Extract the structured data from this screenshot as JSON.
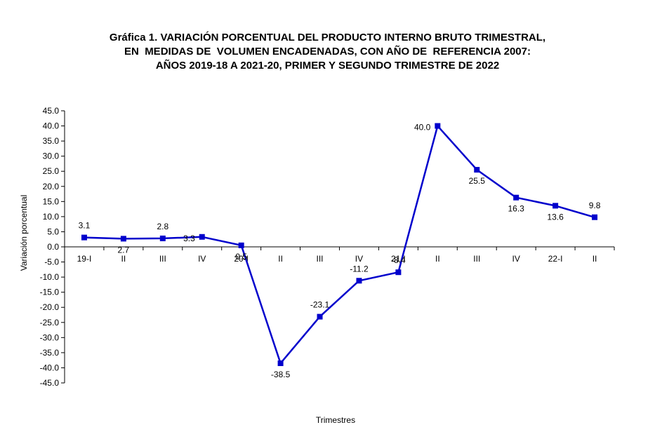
{
  "chart_data": {
    "type": "line",
    "title_lines": [
      "Gráfica 1. VARIACIÓN PORCENTUAL DEL PRODUCTO INTERNO BRUTO TRIMESTRAL,",
      "EN  MEDIDAS DE  VOLUMEN ENCADENADAS, CON AÑO DE  REFERENCIA 2007:",
      "AÑOS 2019-18 A 2021-20, PRIMER Y SEGUNDO TRIMESTRE DE 2022"
    ],
    "xlabel": "Trimestres",
    "ylabel": "Variación porcentual",
    "categories": [
      "19-I",
      "II",
      "III",
      "IV",
      "20-I",
      "II",
      "III",
      "IV",
      "21-I",
      "II",
      "III",
      "IV",
      "22-I",
      "II"
    ],
    "values": [
      3.1,
      2.7,
      2.8,
      3.3,
      0.5,
      -38.5,
      -23.1,
      -11.2,
      -8.4,
      40.0,
      25.5,
      16.3,
      13.6,
      9.8
    ],
    "data_labels": [
      "3.1",
      "2.7",
      "2.8",
      "3.3",
      "0.5",
      "-38.5",
      "-23.1",
      "-11.2",
      "-8.4",
      "40.0",
      "25.5",
      "16.3",
      "13.6",
      "9.8"
    ],
    "ylim": [
      -45,
      45
    ],
    "y_ticks": [
      "45.0",
      "40.0",
      "35.0",
      "30.0",
      "25.0",
      "20.0",
      "15.0",
      "10.0",
      "5.0",
      "0.0",
      "-5.0",
      "-10.0",
      "-15.0",
      "-20.0",
      "-25.0",
      "-30.0",
      "-35.0",
      "-40.0",
      "-45.0"
    ],
    "y_tick_values": [
      45,
      40,
      35,
      30,
      25,
      20,
      15,
      10,
      5,
      0,
      -5,
      -10,
      -15,
      -20,
      -25,
      -30,
      -35,
      -40,
      -45
    ],
    "grid": false,
    "legend": "none",
    "series_color": "#0000cc"
  }
}
